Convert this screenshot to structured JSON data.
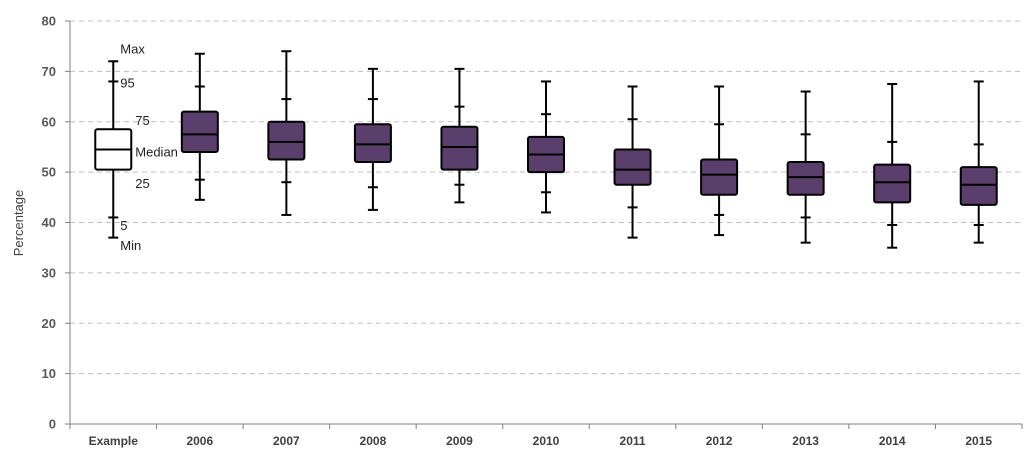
{
  "chart_data": {
    "type": "box",
    "title": "",
    "xlabel": "",
    "ylabel": "Percentage",
    "ylim": [
      0,
      80
    ],
    "yticks": [
      0,
      10,
      20,
      30,
      40,
      50,
      60,
      70,
      80
    ],
    "grid": "horizontal-dashed",
    "categories": [
      "Example",
      "2006",
      "2007",
      "2008",
      "2009",
      "2010",
      "2011",
      "2012",
      "2013",
      "2014",
      "2015"
    ],
    "boxes": [
      {
        "label": "Example",
        "min": 37.0,
        "p5": 41.0,
        "q1": 50.5,
        "median": 54.5,
        "q3": 58.5,
        "p95": 68.0,
        "max": 72.0
      },
      {
        "label": "2006",
        "min": 44.5,
        "p5": 48.5,
        "q1": 54.0,
        "median": 57.5,
        "q3": 62.0,
        "p95": 67.0,
        "max": 73.5
      },
      {
        "label": "2007",
        "min": 41.5,
        "p5": 48.0,
        "q1": 52.5,
        "median": 56.0,
        "q3": 60.0,
        "p95": 64.5,
        "max": 74.0
      },
      {
        "label": "2008",
        "min": 42.5,
        "p5": 47.0,
        "q1": 52.0,
        "median": 55.5,
        "q3": 59.5,
        "p95": 64.5,
        "max": 70.5
      },
      {
        "label": "2009",
        "min": 44.0,
        "p5": 47.5,
        "q1": 50.5,
        "median": 55.0,
        "q3": 59.0,
        "p95": 63.0,
        "max": 70.5
      },
      {
        "label": "2010",
        "min": 42.0,
        "p5": 46.0,
        "q1": 50.0,
        "median": 53.5,
        "q3": 57.0,
        "p95": 61.5,
        "max": 68.0
      },
      {
        "label": "2011",
        "min": 37.0,
        "p5": 43.0,
        "q1": 47.5,
        "median": 50.5,
        "q3": 54.5,
        "p95": 60.5,
        "max": 67.0
      },
      {
        "label": "2012",
        "min": 37.5,
        "p5": 41.5,
        "q1": 45.5,
        "median": 49.5,
        "q3": 52.5,
        "p95": 59.5,
        "max": 67.0
      },
      {
        "label": "2013",
        "min": 36.0,
        "p5": 41.0,
        "q1": 45.5,
        "median": 49.0,
        "q3": 52.0,
        "p95": 57.5,
        "max": 66.0
      },
      {
        "label": "2014",
        "min": 35.0,
        "p5": 39.5,
        "q1": 44.0,
        "median": 48.0,
        "q3": 51.5,
        "p95": 56.0,
        "max": 67.5
      },
      {
        "label": "2015",
        "min": 36.0,
        "p5": 39.5,
        "q1": 43.5,
        "median": 47.5,
        "q3": 51.0,
        "p95": 55.5,
        "max": 68.0
      }
    ],
    "example_annotations": {
      "max": "Max",
      "p95": "95",
      "q3": "75",
      "median": "Median",
      "q1": "25",
      "p5": "5",
      "min": "Min"
    },
    "colors": {
      "box_fill": "#5a3e6b",
      "example_fill": "#ffffff",
      "stroke": "#000000",
      "grid": "#bfbfbf",
      "axis": "#808080"
    }
  }
}
